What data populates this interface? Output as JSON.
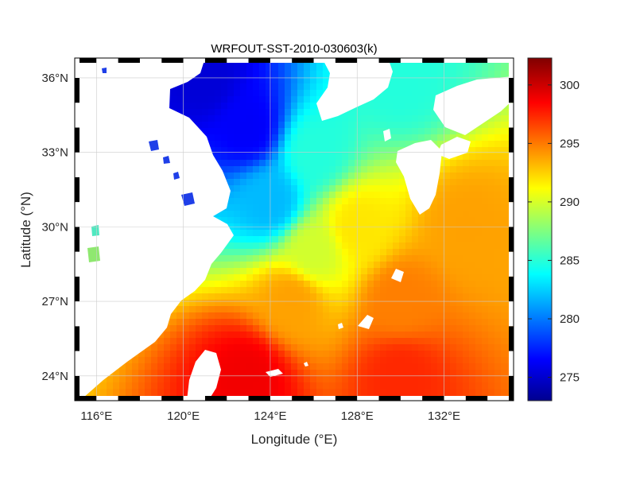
{
  "chart_data": {
    "type": "heatmap",
    "title": "WRFOUT-SST-2010-030603(k)",
    "xlabel": "Longitude (°E)",
    "ylabel": "Latitude (°N)",
    "xlim": [
      115,
      135.2
    ],
    "ylim": [
      23,
      36.8
    ],
    "x_ticks": [
      {
        "value": 116,
        "label": "116°E"
      },
      {
        "value": 120,
        "label": "120°E"
      },
      {
        "value": 124,
        "label": "124°E"
      },
      {
        "value": 128,
        "label": "128°E"
      },
      {
        "value": 132,
        "label": "132°E"
      }
    ],
    "y_ticks": [
      {
        "value": 24,
        "label": "24°N"
      },
      {
        "value": 27,
        "label": "27°N"
      },
      {
        "value": 30,
        "label": "30°N"
      },
      {
        "value": 33,
        "label": "33°N"
      },
      {
        "value": 36,
        "label": "36°N"
      }
    ],
    "colorbar": {
      "range": [
        273,
        302.3
      ],
      "colormap": "jet",
      "ticks": [
        275,
        280,
        285,
        290,
        295,
        300
      ],
      "tick_labels": [
        "275",
        "280",
        "285",
        "290",
        "295",
        "300"
      ]
    },
    "sst_samples": [
      {
        "lon": 121,
        "lat": 36,
        "value": 275.5
      },
      {
        "lon": 123,
        "lat": 34,
        "value": 276.5
      },
      {
        "lon": 124,
        "lat": 31,
        "value": 282
      },
      {
        "lon": 126,
        "lat": 33,
        "value": 285
      },
      {
        "lon": 126,
        "lat": 29,
        "value": 290
      },
      {
        "lon": 128,
        "lat": 30,
        "value": 292
      },
      {
        "lon": 130,
        "lat": 36,
        "value": 285
      },
      {
        "lon": 125,
        "lat": 27,
        "value": 294
      },
      {
        "lon": 130,
        "lat": 27,
        "value": 295
      },
      {
        "lon": 133,
        "lat": 30,
        "value": 294
      },
      {
        "lon": 123,
        "lat": 24,
        "value": 299
      },
      {
        "lon": 130,
        "lat": 24,
        "value": 297.5
      }
    ],
    "grid": true,
    "legend": "none",
    "land_color": "#ffffff"
  }
}
